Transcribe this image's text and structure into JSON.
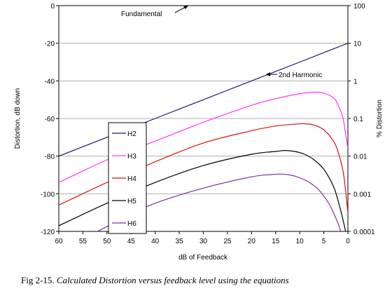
{
  "chart_data": {
    "type": "line",
    "xlabel": "dB of Feedback",
    "ylabel": "Distortion, dB down",
    "y2label": "% Distortion",
    "x_ticks": [
      "60",
      "55",
      "50",
      "45",
      "40",
      "35",
      "30",
      "25",
      "20",
      "15",
      "10",
      "5",
      "0"
    ],
    "x_range": [
      60,
      0
    ],
    "y_ticks": [
      "0",
      "-20",
      "-40",
      "-60",
      "-80",
      "-100",
      "-120"
    ],
    "ylim": [
      -120,
      0
    ],
    "y2_ticks": [
      "100",
      "10",
      "1",
      "0.1",
      "0.01",
      "0.001",
      "0.0001"
    ],
    "grid": "horizontal",
    "legend_position": "left-center",
    "annotations": {
      "fundamental": "Fundamental",
      "second_harmonic": "2nd Harmonic"
    },
    "series": [
      {
        "name": "H2",
        "color": "#1a1a6e",
        "x": [
          60,
          50,
          40,
          30,
          20,
          10,
          5,
          2,
          0
        ],
        "y": [
          -80,
          -70,
          -60,
          -50,
          -40,
          -30,
          -25,
          -22,
          -20
        ]
      },
      {
        "name": "H3",
        "color": "#ff33ff",
        "x": [
          60,
          50,
          40,
          30,
          20,
          15,
          10,
          7,
          5,
          3,
          2,
          1,
          0.5,
          0
        ],
        "y": [
          -94,
          -82,
          -72,
          -62,
          -53,
          -49.5,
          -46.8,
          -46,
          -46.5,
          -49,
          -53,
          -60,
          -68,
          -76
        ]
      },
      {
        "name": "H4",
        "color": "#dd1111",
        "x": [
          60,
          50,
          40,
          30,
          20,
          15,
          11,
          9,
          7,
          5,
          3,
          2,
          1,
          0.5,
          0
        ],
        "y": [
          -106,
          -94,
          -83,
          -73,
          -66.5,
          -64,
          -63,
          -62.8,
          -63.5,
          -66,
          -72,
          -78,
          -88,
          -98,
          -110
        ]
      },
      {
        "name": "H5",
        "color": "#000000",
        "x": [
          60,
          50,
          40,
          30,
          20,
          15,
          13,
          11,
          9,
          7,
          5,
          3,
          2,
          1,
          0.5
        ],
        "y": [
          -117,
          -105,
          -94,
          -85,
          -79,
          -77.5,
          -77,
          -77.5,
          -79,
          -82,
          -87,
          -96,
          -104,
          -114,
          -120
        ]
      },
      {
        "name": "H6",
        "color": "#7a2fa0",
        "x": [
          52,
          45,
          40,
          30,
          20,
          16,
          14,
          12,
          10,
          8,
          6,
          4,
          3,
          2,
          1.5
        ],
        "y": [
          -120,
          -111,
          -105,
          -97,
          -91,
          -89.8,
          -89.5,
          -90,
          -91.5,
          -94,
          -98,
          -105,
          -110,
          -116,
          -120
        ]
      }
    ]
  },
  "caption": {
    "figure_number": "Fig 2-15.",
    "text": "Calculated Distortion versus feedback level using the equations"
  }
}
